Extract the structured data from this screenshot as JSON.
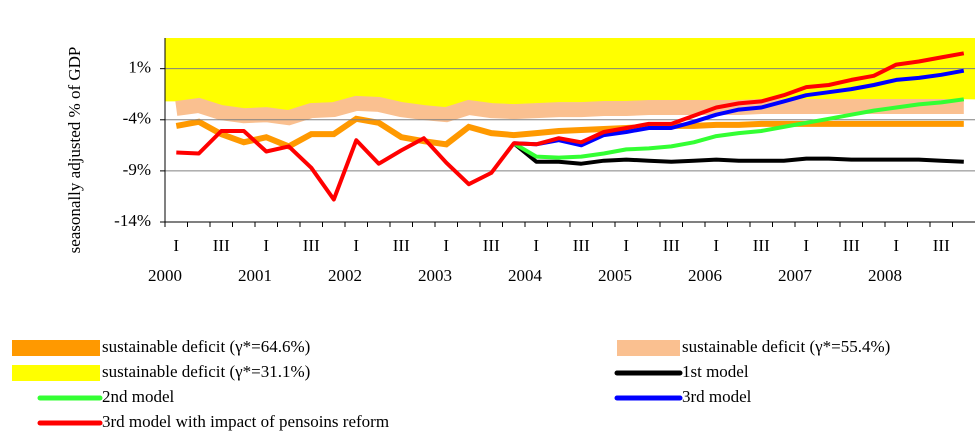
{
  "chart_data": {
    "type": "line",
    "y_label": "seasonally adjusted % of GDP",
    "ylim": [
      -14,
      4
    ],
    "yticks": [
      {
        "value": 1,
        "label": "1%"
      },
      {
        "value": -4,
        "label": "-4%"
      },
      {
        "value": -9,
        "label": "-9%"
      },
      {
        "value": -14,
        "label": "-14%"
      }
    ],
    "grid": true,
    "categories": [
      "I",
      null,
      "III",
      null,
      "I",
      null,
      "III",
      null,
      "I",
      null,
      "III",
      null,
      "I",
      null,
      "III",
      null,
      "I",
      null,
      "III",
      null,
      "I",
      null,
      "III",
      null,
      "I",
      null,
      "III",
      null,
      "I",
      null,
      "III",
      null,
      "I",
      null,
      "III",
      null
    ],
    "category_groups": [
      "2000",
      "2001",
      "2002",
      "2003",
      "2004",
      "2005",
      "2006",
      "2007",
      "2008"
    ],
    "legend": "bottom",
    "series": [
      {
        "name": "sustainable deficit (γ*=64.6%)",
        "style": "band",
        "color": "#ff9900",
        "values": [
          -4.6,
          -4.2,
          -5.4,
          -6.2,
          -5.7,
          -6.6,
          -5.4,
          -5.4,
          -3.9,
          -4.3,
          -5.7,
          -6.1,
          -6.4,
          -4.7,
          -5.3,
          -5.5,
          -5.3,
          -5.1,
          -5.0,
          -4.9,
          -4.8,
          -4.7,
          -4.6,
          -4.6,
          -4.5,
          -4.5,
          -4.4,
          -4.4,
          -4.4,
          -4.4,
          -4.4,
          -4.4,
          -4.4,
          -4.4,
          -4.4,
          -4.4
        ]
      },
      {
        "name": "sustainable deficit (γ*=55.4%)",
        "style": "wideband",
        "color": "#fac090",
        "values": [
          -2.9,
          -2.6,
          -3.3,
          -3.6,
          -3.5,
          -3.8,
          -3.1,
          -3.0,
          -2.4,
          -2.5,
          -3.0,
          -3.3,
          -3.5,
          -2.8,
          -3.1,
          -3.2,
          -3.1,
          -3.0,
          -3.0,
          -2.9,
          -2.9,
          -2.8,
          -2.8,
          -2.8,
          -2.8,
          -2.8,
          -2.7,
          -2.7,
          -2.7,
          -2.7,
          -2.7,
          -2.7,
          -2.7,
          -2.7,
          -2.7,
          -2.7
        ]
      },
      {
        "name": "sustainable deficit (γ*=31.1%)",
        "style": "area",
        "color": "#ffff00",
        "values": [
          -2.2,
          -2.0,
          -2.6,
          -2.9,
          -2.8,
          -3.1,
          -2.4,
          -2.3,
          -1.7,
          -1.8,
          -2.3,
          -2.6,
          -2.8,
          -2.1,
          -2.4,
          -2.5,
          -2.4,
          -2.3,
          -2.3,
          -2.2,
          -2.2,
          -2.1,
          -2.1,
          -2.1,
          -2.1,
          -2.1,
          -2.0,
          -2.0,
          -2.0,
          -2.0,
          -2.0,
          -2.0,
          -2.0,
          -2.0,
          -2.0,
          -2.0
        ]
      },
      {
        "name": "1st model",
        "style": "line",
        "color": "#000000",
        "values": [
          null,
          null,
          null,
          null,
          null,
          null,
          null,
          null,
          null,
          null,
          null,
          null,
          null,
          null,
          null,
          -6.3,
          -8.1,
          -8.1,
          -8.3,
          -8.0,
          -7.9,
          -8.0,
          -8.1,
          -8.0,
          -7.9,
          -8.0,
          -8.0,
          -8.0,
          -7.8,
          -7.8,
          -7.9,
          -7.9,
          -7.9,
          -7.9,
          -8.0,
          -8.1
        ]
      },
      {
        "name": "2nd model",
        "style": "line",
        "color": "#33ff33",
        "values": [
          null,
          null,
          null,
          null,
          null,
          null,
          null,
          null,
          null,
          null,
          null,
          null,
          null,
          null,
          null,
          -6.3,
          -7.6,
          -7.7,
          -7.6,
          -7.3,
          -6.9,
          -6.8,
          -6.6,
          -6.2,
          -5.6,
          -5.3,
          -5.1,
          -4.7,
          -4.3,
          -3.9,
          -3.5,
          -3.1,
          -2.8,
          -2.5,
          -2.3,
          -2.0
        ]
      },
      {
        "name": "3rd model",
        "style": "line",
        "color": "#0000ff",
        "values": [
          null,
          null,
          null,
          null,
          null,
          null,
          null,
          null,
          null,
          null,
          null,
          null,
          null,
          null,
          null,
          -6.3,
          -6.4,
          -6.0,
          -6.5,
          -5.5,
          -5.2,
          -4.8,
          -4.8,
          -4.2,
          -3.5,
          -3.0,
          -2.8,
          -2.2,
          -1.6,
          -1.3,
          -1.0,
          -0.6,
          -0.1,
          0.1,
          0.4,
          0.8
        ]
      },
      {
        "name": "3rd model with impact of pensoins reform",
        "style": "line",
        "color": "#ff0000",
        "values": [
          -7.2,
          -7.3,
          -5.1,
          -5.1,
          -7.1,
          -6.6,
          -8.7,
          -11.8,
          -6.0,
          -8.3,
          -7.0,
          -5.8,
          -8.2,
          -10.3,
          -9.2,
          -6.3,
          -6.4,
          -5.8,
          -6.2,
          -5.2,
          -4.8,
          -4.4,
          -4.4,
          -3.6,
          -2.8,
          -2.4,
          -2.2,
          -1.6,
          -0.8,
          -0.6,
          -0.1,
          0.3,
          1.4,
          1.7,
          2.1,
          2.5
        ]
      }
    ]
  }
}
